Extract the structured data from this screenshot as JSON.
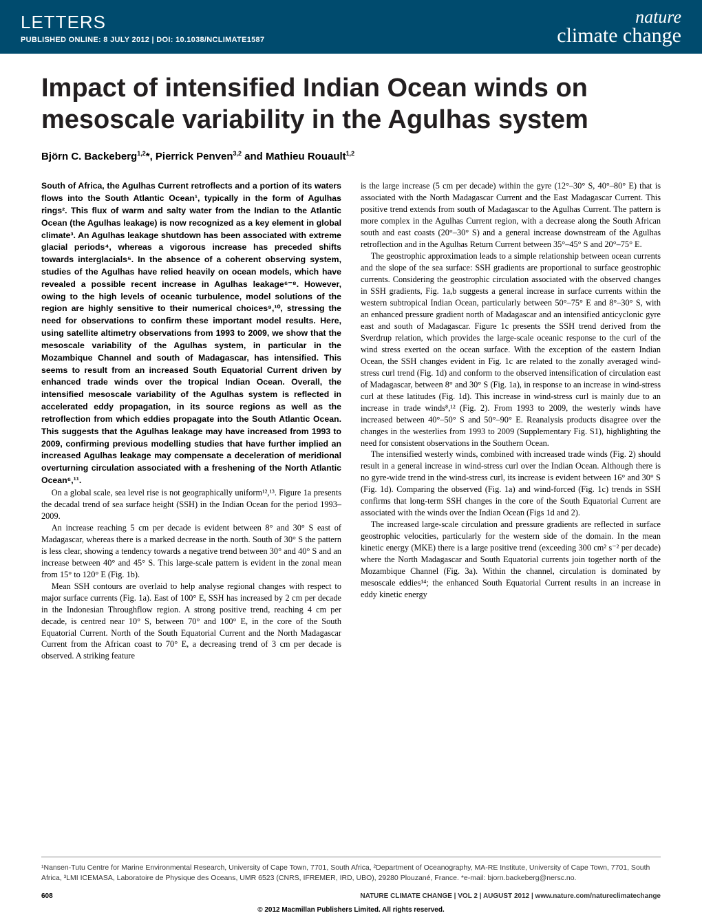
{
  "header": {
    "section": "LETTERS",
    "pub_prefix": "PUBLISHED ONLINE: 8 JULY 2012 | ",
    "doi_label": "DOI: 10.1038/NCLIMATE1587",
    "journal_line1": "nature",
    "journal_line2": "climate change"
  },
  "title": "Impact of intensified Indian Ocean winds on mesoscale variability in the Agulhas system",
  "authors_html": "Björn C. Backeberg",
  "authors_sup1": "1,2",
  "authors_star": "*",
  "authors_mid": ", Pierrick Penven",
  "authors_sup2": "3,2",
  "authors_and": " and Mathieu Rouault",
  "authors_sup3": "1,2",
  "abstract": "South of Africa, the Agulhas Current retroflects and a portion of its waters flows into the South Atlantic Ocean¹, typically in the form of Agulhas rings². This flux of warm and salty water from the Indian to the Atlantic Ocean (the Agulhas leakage) is now recognized as a key element in global climate³. An Agulhas leakage shutdown has been associated with extreme glacial periods⁴, whereas a vigorous increase has preceded shifts towards interglacials⁵. In the absence of a coherent observing system, studies of the Agulhas have relied heavily on ocean models, which have revealed a possible recent increase in Agulhas leakage⁶⁻⁸. However, owing to the high levels of oceanic turbulence, model solutions of the region are highly sensitive to their numerical choices⁹,¹⁰, stressing the need for observations to confirm these important model results. Here, using satellite altimetry observations from 1993 to 2009, we show that the mesoscale variability of the Agulhas system, in particular in the Mozambique Channel and south of Madagascar, has intensified. This seems to result from an increased South Equatorial Current driven by enhanced trade winds over the tropical Indian Ocean. Overall, the intensified mesoscale variability of the Agulhas system is reflected in accelerated eddy propagation, in its source regions as well as the retroflection from which eddies propagate into the South Atlantic Ocean. This suggests that the Agulhas leakage may have increased from 1993 to 2009, confirming previous modelling studies that have further implied an increased Agulhas leakage may compensate a deceleration of meridional overturning circulation associated with a freshening of the North Atlantic Ocean⁶,¹¹.",
  "col1_p1": "On a global scale, sea level rise is not geographically uniform¹²,¹³. Figure 1a presents the decadal trend of sea surface height (SSH) in the Indian Ocean for the period 1993–2009.",
  "col1_p2": "An increase reaching 5 cm per decade is evident between 8° and 30° S east of Madagascar, whereas there is a marked decrease in the north. South of 30° S the pattern is less clear, showing a tendency towards a negative trend between 30° and 40° S and an increase between 40° and 45° S. This large-scale pattern is evident in the zonal mean from 15° to 120° E (Fig. 1b).",
  "col1_p3": "Mean SSH contours are overlaid to help analyse regional changes with respect to major surface currents (Fig. 1a). East of 100° E, SSH has increased by 2 cm per decade in the Indonesian Throughflow region. A strong positive trend, reaching 4 cm per decade, is centred near 10° S, between 70° and 100° E, in the core of the South Equatorial Current. North of the South Equatorial Current and the North Madagascar Current from the African coast to 70° E, a decreasing trend of 3 cm per decade is observed. A striking feature",
  "col2_p1": "is the large increase (5 cm per decade) within the gyre (12°–30° S, 40°–80° E) that is associated with the North Madagascar Current and the East Madagascar Current. This positive trend extends from south of Madagascar to the Agulhas Current. The pattern is more complex in the Agulhas Current region, with a decrease along the South African south and east coasts (20°–30° S) and a general increase downstream of the Agulhas retroflection and in the Agulhas Return Current between 35°–45° S and 20°–75° E.",
  "col2_p2": "The geostrophic approximation leads to a simple relationship between ocean currents and the slope of the sea surface: SSH gradients are proportional to surface geostrophic currents. Considering the geostrophic circulation associated with the observed changes in SSH gradients, Fig. 1a,b suggests a general increase in surface currents within the western subtropical Indian Ocean, particularly between 50°–75° E and 8°–30° S, with an enhanced pressure gradient north of Madagascar and an intensified anticyclonic gyre east and south of Madagascar. Figure 1c presents the SSH trend derived from the Sverdrup relation, which provides the large-scale oceanic response to the curl of the wind stress exerted on the ocean surface. With the exception of the eastern Indian Ocean, the SSH changes evident in Fig. 1c are related to the zonally averaged wind-stress curl trend (Fig. 1d) and conform to the observed intensification of circulation east of Madagascar, between 8° and 30° S (Fig. 1a), in response to an increase in wind-stress curl at these latitudes (Fig. 1d). This increase in wind-stress curl is mainly due to an increase in trade winds⁸,¹² (Fig. 2). From 1993 to 2009, the westerly winds have increased between 40°–50° S and 50°–90° E. Reanalysis products disagree over the changes in the westerlies from 1993 to 2009 (Supplementary Fig. S1), highlighting the need for consistent observations in the Southern Ocean.",
  "col2_p3": "The intensified westerly winds, combined with increased trade winds (Fig. 2) should result in a general increase in wind-stress curl over the Indian Ocean. Although there is no gyre-wide trend in the wind-stress curl, its increase is evident between 16° and 30° S (Fig. 1d). Comparing the observed (Fig. 1a) and wind-forced (Fig. 1c) trends in SSH confirms that long-term SSH changes in the core of the South Equatorial Current are associated with the winds over the Indian Ocean (Figs 1d and 2).",
  "col2_p4": "The increased large-scale circulation and pressure gradients are reflected in surface geostrophic velocities, particularly for the western side of the domain. In the mean kinetic energy (MKE) there is a large positive trend (exceeding 300 cm² s⁻² per decade) where the North Madagascar and South Equatorial currents join together north of the Mozambique Channel (Fig. 3a). Within the channel, circulation is dominated by mesoscale eddies¹⁴; the enhanced South Equatorial Current results in an increase in eddy kinetic energy",
  "affiliations": "¹Nansen-Tutu Centre for Marine Environmental Research, University of Cape Town, 7701, South Africa, ²Department of Oceanography, MA-RE Institute, University of Cape Town, 7701, South Africa, ³LMI ICEMASA, Laboratoire de Physique des Oceans, UMR 6523 (CNRS, IFREMER, IRD, UBO), 29280 Plouzané, France. *e-mail: bjorn.backeberg@nersc.no.",
  "footer": {
    "page": "608",
    "pub": "NATURE CLIMATE CHANGE | VOL 2 | AUGUST 2012 | www.nature.com/natureclimatechange"
  },
  "copyright": "© 2012 Macmillan Publishers Limited.  All rights reserved."
}
